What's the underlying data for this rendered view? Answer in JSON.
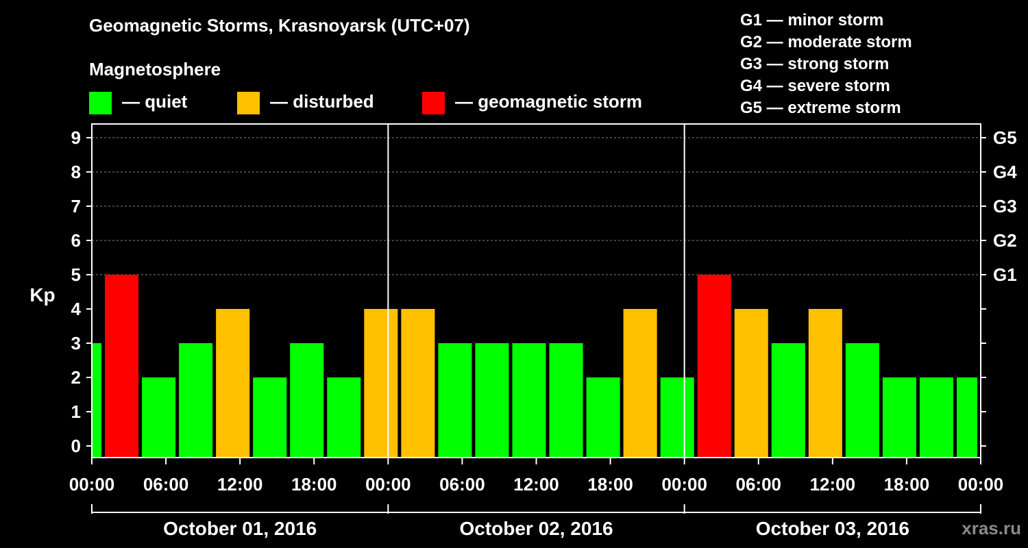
{
  "title": "Geomagnetic Storms, Krasnoyarsk (UTC+07)",
  "legend": {
    "heading": "Magnetosphere",
    "items": [
      {
        "label": "— quiet",
        "color": "#00ff00"
      },
      {
        "label": "— disturbed",
        "color": "#ffc000"
      },
      {
        "label": "— geomagnetic storm",
        "color": "#ff0000"
      }
    ]
  },
  "g_legend": [
    "G1 — minor storm",
    "G2 — moderate storm",
    "G3 — strong storm",
    "G4 — severe storm",
    "G5 — extreme storm"
  ],
  "watermark": "xras.ru",
  "chart_data": {
    "type": "bar",
    "title": "Geomagnetic Storms, Krasnoyarsk (UTC+07)",
    "ylabel": "Kp",
    "ylim": [
      0,
      9
    ],
    "yticks": [
      "0",
      "1",
      "2",
      "3",
      "4",
      "5",
      "6",
      "7",
      "8",
      "9"
    ],
    "right_ticks": [
      {
        "value": 5,
        "label": "G1"
      },
      {
        "value": 6,
        "label": "G2"
      },
      {
        "value": 7,
        "label": "G3"
      },
      {
        "value": 8,
        "label": "G4"
      },
      {
        "value": 9,
        "label": "G5"
      }
    ],
    "x_ticks": [
      "00:00",
      "06:00",
      "12:00",
      "18:00",
      "00:00",
      "06:00",
      "12:00",
      "18:00",
      "00:00",
      "06:00",
      "12:00",
      "18:00",
      "00:00"
    ],
    "dates": [
      "October 01, 2016",
      "October 02, 2016",
      "October 03, 2016"
    ],
    "interval_hours": 3,
    "start_offset_hours": -2,
    "total_hours": 72,
    "values": [
      3,
      5,
      2,
      3,
      4,
      2,
      3,
      2,
      4,
      4,
      3,
      3,
      3,
      3,
      2,
      4,
      2,
      5,
      4,
      3,
      4,
      3,
      2,
      2,
      2
    ],
    "categories": [
      "quiet",
      "geomagnetic storm",
      "quiet",
      "quiet",
      "disturbed",
      "quiet",
      "quiet",
      "quiet",
      "disturbed",
      "disturbed",
      "quiet",
      "quiet",
      "quiet",
      "quiet",
      "quiet",
      "disturbed",
      "quiet",
      "geomagnetic storm",
      "disturbed",
      "quiet",
      "disturbed",
      "quiet",
      "quiet",
      "quiet",
      "quiet"
    ]
  }
}
